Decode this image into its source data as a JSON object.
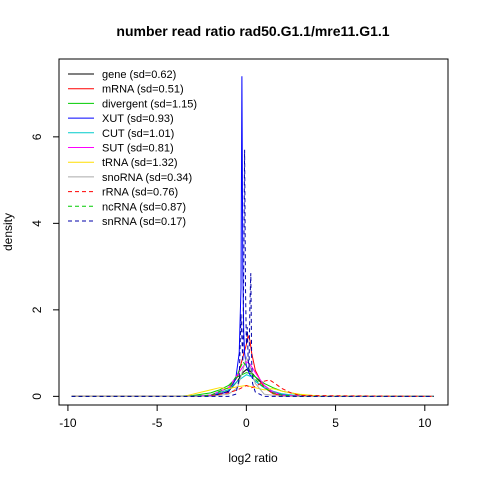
{
  "chart_data": {
    "type": "line",
    "title": "number read ratio rad50.G1.1/mre11.G1.1",
    "xlabel": "log2 ratio",
    "ylabel": "density",
    "xlim": [
      -10.5,
      11.3
    ],
    "ylim": [
      -0.2,
      7.8
    ],
    "xticks": [
      -10,
      -5,
      0,
      5,
      10
    ],
    "yticks": [
      0,
      2,
      4,
      6
    ],
    "legend_position": "top-left",
    "grid": false,
    "series": [
      {
        "name": "gene (sd=0.62)",
        "color": "#000000",
        "dash": "solid",
        "x": [
          -9.8,
          -3.0,
          -2.0,
          -1.5,
          -1.0,
          -0.5,
          -0.2,
          0.0,
          0.1,
          0.2,
          0.3,
          0.5,
          1.0,
          1.5,
          2.0,
          3.0,
          10.5
        ],
        "y": [
          0,
          0,
          0.02,
          0.05,
          0.12,
          0.35,
          0.55,
          0.62,
          0.6,
          0.58,
          0.55,
          0.45,
          0.25,
          0.1,
          0.04,
          0.01,
          0
        ]
      },
      {
        "name": "mRNA (sd=0.51)",
        "color": "#ff0000",
        "dash": "solid",
        "x": [
          -9.8,
          -3.0,
          -2.0,
          -1.0,
          -0.5,
          -0.2,
          0.0,
          0.1,
          0.2,
          0.3,
          0.5,
          1.0,
          1.5,
          2.0,
          3.0,
          10.5
        ],
        "y": [
          0,
          0,
          0.02,
          0.15,
          0.45,
          0.9,
          1.2,
          1.4,
          1.3,
          1.0,
          0.6,
          0.2,
          0.06,
          0.02,
          0,
          0
        ]
      },
      {
        "name": "divergent (sd=1.15)",
        "color": "#00cc00",
        "dash": "solid",
        "x": [
          -9.8,
          -4.0,
          -3.0,
          -2.0,
          -1.5,
          -1.0,
          -0.5,
          0.0,
          0.3,
          0.5,
          1.0,
          1.5,
          2.0,
          3.0,
          4.0,
          10.5
        ],
        "y": [
          0,
          0,
          0.02,
          0.08,
          0.15,
          0.25,
          0.45,
          0.55,
          0.52,
          0.45,
          0.3,
          0.2,
          0.12,
          0.04,
          0.01,
          0
        ]
      },
      {
        "name": "XUT (sd=0.93)",
        "color": "#0000ff",
        "dash": "solid",
        "x": [
          -9.8,
          -3.0,
          -2.0,
          -1.0,
          -0.6,
          -0.4,
          -0.3,
          -0.25,
          -0.2,
          -0.15,
          -0.1,
          0.0,
          0.1,
          0.2,
          0.5,
          1.0,
          1.5,
          2.0,
          3.0,
          10.5
        ],
        "y": [
          0,
          0,
          0.02,
          0.1,
          0.4,
          1.0,
          2.5,
          7.4,
          3.0,
          1.5,
          1.0,
          0.7,
          0.6,
          0.5,
          0.35,
          0.2,
          0.1,
          0.04,
          0.01,
          0
        ]
      },
      {
        "name": "CUT (sd=1.01)",
        "color": "#00cccc",
        "dash": "solid",
        "x": [
          -9.8,
          -3.0,
          -2.0,
          -1.0,
          -0.5,
          0.0,
          0.3,
          0.5,
          1.0,
          1.5,
          2.0,
          3.0,
          10.5
        ],
        "y": [
          0,
          0,
          0.03,
          0.15,
          0.35,
          0.5,
          0.45,
          0.35,
          0.2,
          0.12,
          0.06,
          0.01,
          0
        ]
      },
      {
        "name": "SUT (sd=0.81)",
        "color": "#ff00ff",
        "dash": "solid",
        "x": [
          -9.8,
          -3.0,
          -2.0,
          -1.0,
          -0.5,
          0.0,
          0.2,
          0.5,
          1.0,
          1.5,
          2.0,
          3.0,
          10.5
        ],
        "y": [
          0,
          0,
          0.03,
          0.2,
          0.5,
          0.8,
          0.75,
          0.55,
          0.25,
          0.1,
          0.03,
          0.01,
          0
        ]
      },
      {
        "name": "tRNA (sd=1.32)",
        "color": "#ffdd00",
        "dash": "solid",
        "x": [
          -9.8,
          -3.5,
          -3.0,
          -2.5,
          -2.0,
          -1.5,
          -1.0,
          -0.5,
          0.0,
          0.5,
          1.0,
          1.5,
          2.0,
          2.5,
          3.0,
          4.0,
          10.5
        ],
        "y": [
          0,
          0,
          0.05,
          0.1,
          0.15,
          0.2,
          0.18,
          0.22,
          0.25,
          0.2,
          0.15,
          0.18,
          0.12,
          0.08,
          0.05,
          0.01,
          0
        ]
      },
      {
        "name": "snoRNA (sd=0.34)",
        "color": "#aaaaaa",
        "dash": "solid",
        "x": [
          -9.8,
          -2.0,
          -1.0,
          -0.5,
          -0.2,
          0.0,
          0.2,
          0.5,
          1.0,
          2.0,
          10.5
        ],
        "y": [
          0,
          0,
          0.05,
          0.2,
          0.6,
          0.9,
          0.7,
          0.3,
          0.05,
          0,
          0
        ]
      },
      {
        "name": "rRNA (sd=0.76)",
        "color": "#ff0000",
        "dash": "dashed",
        "x": [
          -9.8,
          -3.0,
          -2.0,
          -1.0,
          -0.5,
          0.0,
          0.3,
          0.6,
          1.0,
          1.3,
          1.6,
          2.0,
          2.5,
          3.0,
          10.5
        ],
        "y": [
          0,
          0,
          0.02,
          0.08,
          0.15,
          0.25,
          0.2,
          0.25,
          0.35,
          0.38,
          0.3,
          0.18,
          0.08,
          0.02,
          0
        ]
      },
      {
        "name": "ncRNA (sd=0.87)",
        "color": "#00cc00",
        "dash": "dashed",
        "x": [
          -9.8,
          -3.0,
          -2.0,
          -1.0,
          -0.5,
          -0.2,
          0.0,
          0.2,
          0.5,
          1.0,
          1.5,
          2.0,
          3.0,
          10.5
        ],
        "y": [
          0,
          0,
          0.03,
          0.2,
          0.5,
          0.8,
          0.7,
          0.6,
          0.4,
          0.2,
          0.08,
          0.03,
          0,
          0
        ]
      },
      {
        "name": "snRNA (sd=0.17)",
        "color": "#0000aa",
        "dash": "dashed",
        "x": [
          -9.8,
          -1.0,
          -0.6,
          -0.4,
          -0.3,
          -0.2,
          -0.15,
          -0.1,
          -0.05,
          0.0,
          0.05,
          0.1,
          0.15,
          0.2,
          0.25,
          0.3,
          0.35,
          0.5,
          1.0,
          10.5
        ],
        "y": [
          0,
          0,
          0.05,
          0.4,
          1.9,
          0.8,
          2.8,
          5.7,
          2.5,
          1.2,
          1.6,
          0.9,
          0.6,
          2.1,
          2.85,
          0.8,
          0.3,
          0.1,
          0,
          0
        ]
      }
    ]
  }
}
